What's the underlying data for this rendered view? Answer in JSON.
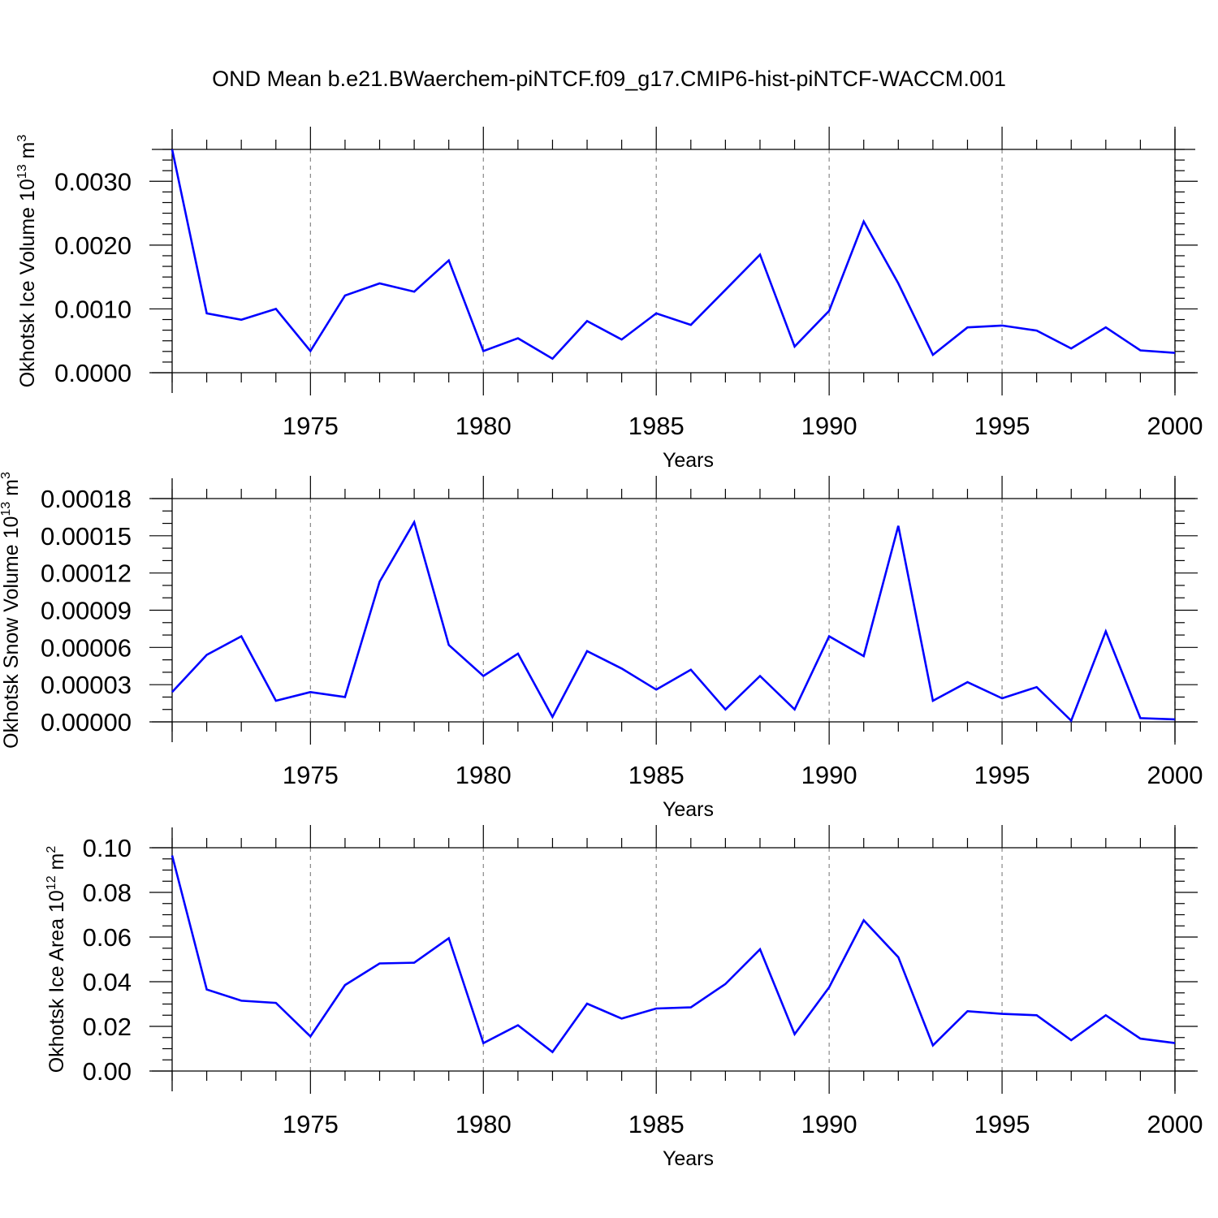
{
  "title": "OND Mean b.e21.BWaerchem-piNTCF.f09_g17.CMIP6-hist-piNTCF-WACCM.001",
  "colors": {
    "line": "#0000ff",
    "axis": "#000000",
    "grid": "#888888"
  },
  "chart_data": [
    {
      "type": "line",
      "ylabel": "Okhotsk Ice Volume 10",
      "ylabel_exp": "13",
      "ylabel_unit": " m",
      "ylabel_unit_exp": "3",
      "xlabel": "Years",
      "xlim": [
        1971,
        2000
      ],
      "ylim": [
        0,
        0.0035
      ],
      "xticks": [
        1975,
        1980,
        1985,
        1990,
        1995,
        2000
      ],
      "yticks": [
        0,
        0.001,
        0.002,
        0.003
      ],
      "ytick_labels": [
        "0.0000",
        "0.0010",
        "0.0020",
        "0.0030"
      ],
      "grid_x": true,
      "x": [
        1971,
        1972,
        1973,
        1974,
        1975,
        1976,
        1977,
        1978,
        1979,
        1980,
        1981,
        1982,
        1983,
        1984,
        1985,
        1986,
        1987,
        1988,
        1989,
        1990,
        1991,
        1992,
        1993,
        1994,
        1995,
        1996,
        1997,
        1998,
        1999,
        2000
      ],
      "series": [
        {
          "values": [
            0.0035,
            0.00093,
            0.00083,
            0.001,
            0.00034,
            0.00121,
            0.0014,
            0.00127,
            0.00176,
            0.00034,
            0.00054,
            0.00022,
            0.00081,
            0.00052,
            0.00093,
            0.00075,
            0.0013,
            0.00185,
            0.00041,
            0.00097,
            0.00237,
            0.0014,
            0.00028,
            0.00071,
            0.00074,
            0.00066,
            0.00038,
            0.00071,
            0.00035,
            0.00031
          ]
        }
      ]
    },
    {
      "type": "line",
      "ylabel": "Okhotsk Snow Volume 10",
      "ylabel_exp": "13",
      "ylabel_unit": " m",
      "ylabel_unit_exp": "3",
      "xlabel": "Years",
      "xlim": [
        1971,
        2000
      ],
      "ylim": [
        0,
        0.00018
      ],
      "xticks": [
        1975,
        1980,
        1985,
        1990,
        1995,
        2000
      ],
      "yticks": [
        0,
        3e-05,
        6e-05,
        9e-05,
        0.00012,
        0.00015,
        0.00018
      ],
      "ytick_labels": [
        "0.00000",
        "0.00003",
        "0.00006",
        "0.00009",
        "0.00012",
        "0.00015",
        "0.00018"
      ],
      "grid_x": true,
      "x": [
        1971,
        1972,
        1973,
        1974,
        1975,
        1976,
        1977,
        1978,
        1979,
        1980,
        1981,
        1982,
        1983,
        1984,
        1985,
        1986,
        1987,
        1988,
        1989,
        1990,
        1991,
        1992,
        1993,
        1994,
        1995,
        1996,
        1997,
        1998,
        1999,
        2000
      ],
      "series": [
        {
          "values": [
            2.4e-05,
            5.4e-05,
            6.9e-05,
            1.7e-05,
            2.4e-05,
            2e-05,
            0.000113,
            0.000161,
            6.2e-05,
            3.7e-05,
            5.5e-05,
            4e-06,
            5.7e-05,
            4.3e-05,
            2.6e-05,
            4.2e-05,
            1e-05,
            3.7e-05,
            1e-05,
            6.9e-05,
            5.3e-05,
            0.000158,
            1.7e-05,
            3.2e-05,
            1.9e-05,
            2.8e-05,
            1e-06,
            7.3e-05,
            3e-06,
            2e-06
          ]
        }
      ]
    },
    {
      "type": "line",
      "ylabel": "Okhotsk Ice Area 10",
      "ylabel_exp": "12",
      "ylabel_unit": " m",
      "ylabel_unit_exp": "2",
      "xlabel": "Years",
      "xlim": [
        1971,
        2000
      ],
      "ylim": [
        0,
        0.1
      ],
      "xticks": [
        1975,
        1980,
        1985,
        1990,
        1995,
        2000
      ],
      "yticks": [
        0,
        0.02,
        0.04,
        0.06,
        0.08,
        0.1
      ],
      "ytick_labels": [
        "0.00",
        "0.02",
        "0.04",
        "0.06",
        "0.08",
        "0.10"
      ],
      "grid_x": true,
      "x": [
        1971,
        1972,
        1973,
        1974,
        1975,
        1976,
        1977,
        1978,
        1979,
        1980,
        1981,
        1982,
        1983,
        1984,
        1985,
        1986,
        1987,
        1988,
        1989,
        1990,
        1991,
        1992,
        1993,
        1994,
        1995,
        1996,
        1997,
        1998,
        1999,
        2000
      ],
      "series": [
        {
          "values": [
            0.0965,
            0.0365,
            0.0315,
            0.0305,
            0.0155,
            0.0385,
            0.0482,
            0.0485,
            0.0595,
            0.0125,
            0.0205,
            0.0085,
            0.0302,
            0.0235,
            0.028,
            0.0285,
            0.039,
            0.0545,
            0.0165,
            0.0375,
            0.0675,
            0.051,
            0.0115,
            0.0268,
            0.0256,
            0.025,
            0.0138,
            0.025,
            0.0145,
            0.0125
          ]
        }
      ]
    }
  ]
}
